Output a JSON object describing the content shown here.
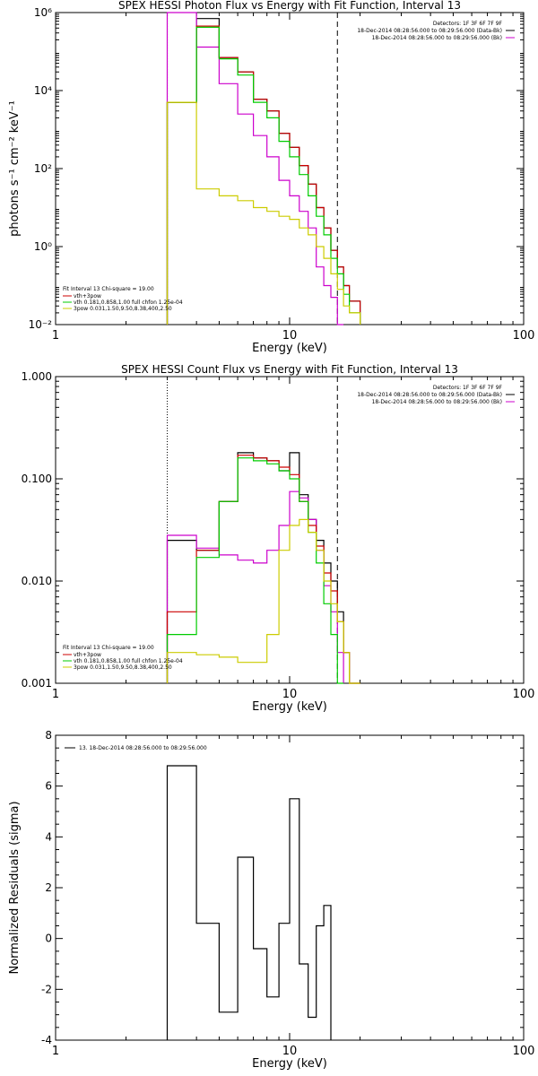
{
  "chart_data": [
    {
      "type": "line",
      "title": "SPEX HESSI Photon Flux vs Energy with Fit Function, Interval 13",
      "xlabel": "Energy (keV)",
      "ylabel": "photons s⁻¹ cm⁻² keV⁻¹",
      "xscale": "log",
      "yscale": "log",
      "xlim": [
        1,
        100
      ],
      "ylim": [
        0.01,
        1000000
      ],
      "x_ticks": [
        {
          "value": 1,
          "label": "1"
        },
        {
          "value": 10,
          "label": "10"
        },
        {
          "value": 100,
          "label": "100"
        }
      ],
      "y_ticks": [
        {
          "value": 0.01,
          "label": "10⁻²"
        },
        {
          "value": 1,
          "label": "10⁰"
        },
        {
          "value": 100,
          "label": "10²"
        },
        {
          "value": 10000,
          "label": "10⁴"
        },
        {
          "value": 1000000,
          "label": "10⁶"
        }
      ],
      "vlines": [
        {
          "x": 3.0,
          "style": "dotted"
        },
        {
          "x": 16.0,
          "style": "dashed"
        }
      ],
      "legend_top_right": [
        {
          "text": "Detectors: 1F 3F 6F 7F 9F",
          "color": "#000000"
        },
        {
          "text": "18-Dec-2014 08:28:56.000 to 08:29:56.000 (Data-Bk)",
          "color": "#000000"
        },
        {
          "text": "18-Dec-2014 08:28:56.000 to 08:29:56.000 (Bk)",
          "color": "#cc00cc"
        }
      ],
      "legend_bottom_left_header": "Fit Interval 13   Chi-square = 19.00",
      "legend_bottom_left": [
        {
          "text": "vth+3pow",
          "color": "#cc0000"
        },
        {
          "text": "vth 0.181,0.858,1.00  full chfon 1.25e-04",
          "color": "#00cc00"
        },
        {
          "text": "3pow 0.031,1.50,9.50,8.38,400,2.50",
          "color": "#cccc00"
        }
      ],
      "edges": [
        3.0,
        4.0,
        5.0,
        6.0,
        7.0,
        8.0,
        9.0,
        10.0,
        11.0,
        12.0,
        13.0,
        14.0,
        15.0,
        16.0,
        17.0,
        18.0,
        20.0
      ],
      "series": [
        {
          "color": "#000000",
          "values": [
            5000,
            700000,
            70000,
            30000,
            6000,
            3000,
            800,
            350,
            120,
            40,
            10,
            3,
            0.8,
            0.3,
            0.1,
            0.04,
            0.01
          ]
        },
        {
          "color": "#cc00cc",
          "values": [
            3000000,
            130000,
            15000,
            2500,
            700,
            200,
            50,
            20,
            8,
            3,
            0.3,
            0.1,
            0.05,
            0.01
          ]
        },
        {
          "color": "#cc0000",
          "values": [
            5000,
            450000,
            70000,
            30000,
            6000,
            3000,
            800,
            350,
            120,
            40,
            10,
            3,
            0.8,
            0.3,
            0.1,
            0.04,
            0.01
          ]
        },
        {
          "color": "#00cc00",
          "values": [
            5000,
            420000,
            65000,
            25000,
            5000,
            2000,
            500,
            200,
            70,
            20,
            6,
            2,
            0.5,
            0.2,
            0.06,
            0.02,
            0.01
          ]
        },
        {
          "color": "#cccc00",
          "values": [
            5000,
            30,
            20,
            15,
            10,
            8,
            6,
            5,
            3,
            2,
            1,
            0.5,
            0.2,
            0.08,
            0.03,
            0.02,
            0.01
          ]
        }
      ]
    },
    {
      "type": "line",
      "title": "SPEX HESSI Count Flux vs Energy with Fit Function, Interval 13",
      "xlabel": "Energy (keV)",
      "ylabel": "",
      "xscale": "log",
      "yscale": "log",
      "xlim": [
        1,
        100
      ],
      "ylim": [
        0.001,
        1.0
      ],
      "x_ticks": [
        {
          "value": 1,
          "label": "1"
        },
        {
          "value": 10,
          "label": "10"
        },
        {
          "value": 100,
          "label": "100"
        }
      ],
      "y_ticks": [
        {
          "value": 0.001,
          "label": "0.001"
        },
        {
          "value": 0.01,
          "label": "0.010"
        },
        {
          "value": 0.1,
          "label": "0.100"
        },
        {
          "value": 1.0,
          "label": "1.000"
        }
      ],
      "vlines": [
        {
          "x": 3.0,
          "style": "dotted"
        },
        {
          "x": 16.0,
          "style": "dashed"
        }
      ],
      "legend_top_right": [
        {
          "text": "Detectors: 1F 3F 6F 7F 9F",
          "color": "#000000"
        },
        {
          "text": "18-Dec-2014 08:28:56.000 to 08:29:56.000 (Data-Bk)",
          "color": "#000000"
        },
        {
          "text": "18-Dec-2014 08:28:56.000 to 08:29:56.000 (Bk)",
          "color": "#cc00cc"
        }
      ],
      "legend_bottom_left_header": "Fit Interval 13   Chi-square = 19.00",
      "legend_bottom_left": [
        {
          "text": "vth+3pow",
          "color": "#cc0000"
        },
        {
          "text": "vth 0.181,0.858,1.00  full chfon 1.25e-04",
          "color": "#00cc00"
        },
        {
          "text": "3pow 0.031,1.50,9.50,8.38,400,2.50",
          "color": "#cccc00"
        }
      ],
      "edges": [
        3.0,
        4.0,
        5.0,
        6.0,
        7.0,
        8.0,
        9.0,
        10.0,
        11.0,
        12.0,
        13.0,
        14.0,
        15.0,
        16.0,
        17.0,
        18.0,
        20.0
      ],
      "series": [
        {
          "color": "#000000",
          "values": [
            0.025,
            0.02,
            0.06,
            0.18,
            0.16,
            0.15,
            0.12,
            0.18,
            0.07,
            0.04,
            0.025,
            0.015,
            0.01,
            0.005,
            0.002,
            0.001
          ]
        },
        {
          "color": "#cc00cc",
          "values": [
            0.028,
            0.021,
            0.018,
            0.016,
            0.015,
            0.02,
            0.035,
            0.075,
            0.065,
            0.04,
            0.02,
            0.009,
            0.005,
            0.002
          ]
        },
        {
          "color": "#cc0000",
          "values": [
            0.005,
            0.02,
            0.06,
            0.17,
            0.16,
            0.15,
            0.13,
            0.11,
            0.06,
            0.035,
            0.022,
            0.012,
            0.008,
            0.004,
            0.002,
            0.001
          ]
        },
        {
          "color": "#00cc00",
          "values": [
            0.003,
            0.017,
            0.06,
            0.16,
            0.15,
            0.14,
            0.12,
            0.1,
            0.06,
            0.03,
            0.015,
            0.006,
            0.003,
            0.001
          ]
        },
        {
          "color": "#cccc00",
          "values": [
            0.002,
            0.0019,
            0.0018,
            0.0016,
            0.0016,
            0.003,
            0.02,
            0.035,
            0.04,
            0.03,
            0.02,
            0.01,
            0.006,
            0.004,
            0.002,
            0.001
          ]
        }
      ]
    },
    {
      "type": "line",
      "title": "",
      "xlabel": "Energy (keV)",
      "ylabel": "Normalized Residuals (sigma)",
      "xscale": "log",
      "yscale": "linear",
      "xlim": [
        1,
        100
      ],
      "ylim": [
        -4,
        8
      ],
      "x_ticks": [
        {
          "value": 1,
          "label": "1"
        },
        {
          "value": 10,
          "label": "10"
        },
        {
          "value": 100,
          "label": "100"
        }
      ],
      "y_ticks": [
        {
          "value": -4,
          "label": "-4"
        },
        {
          "value": -2,
          "label": "-2"
        },
        {
          "value": 0,
          "label": "0"
        },
        {
          "value": 2,
          "label": "2"
        },
        {
          "value": 4,
          "label": "4"
        },
        {
          "value": 6,
          "label": "6"
        },
        {
          "value": 8,
          "label": "8"
        }
      ],
      "legend_top_left": [
        {
          "text": "13. 18-Dec-2014 08:28:56.000 to 08:29:56.000",
          "color": "#000000"
        }
      ],
      "edges": [
        3.0,
        4.0,
        5.0,
        6.0,
        7.0,
        8.0,
        9.0,
        10.0,
        11.0,
        12.0,
        13.0,
        14.0,
        15.0,
        16.0
      ],
      "series": [
        {
          "color": "#000000",
          "values": [
            6.8,
            0.6,
            -2.9,
            3.2,
            -0.4,
            -2.3,
            0.6,
            5.5,
            -1.0,
            -3.1,
            0.5,
            1.3
          ]
        }
      ]
    }
  ]
}
